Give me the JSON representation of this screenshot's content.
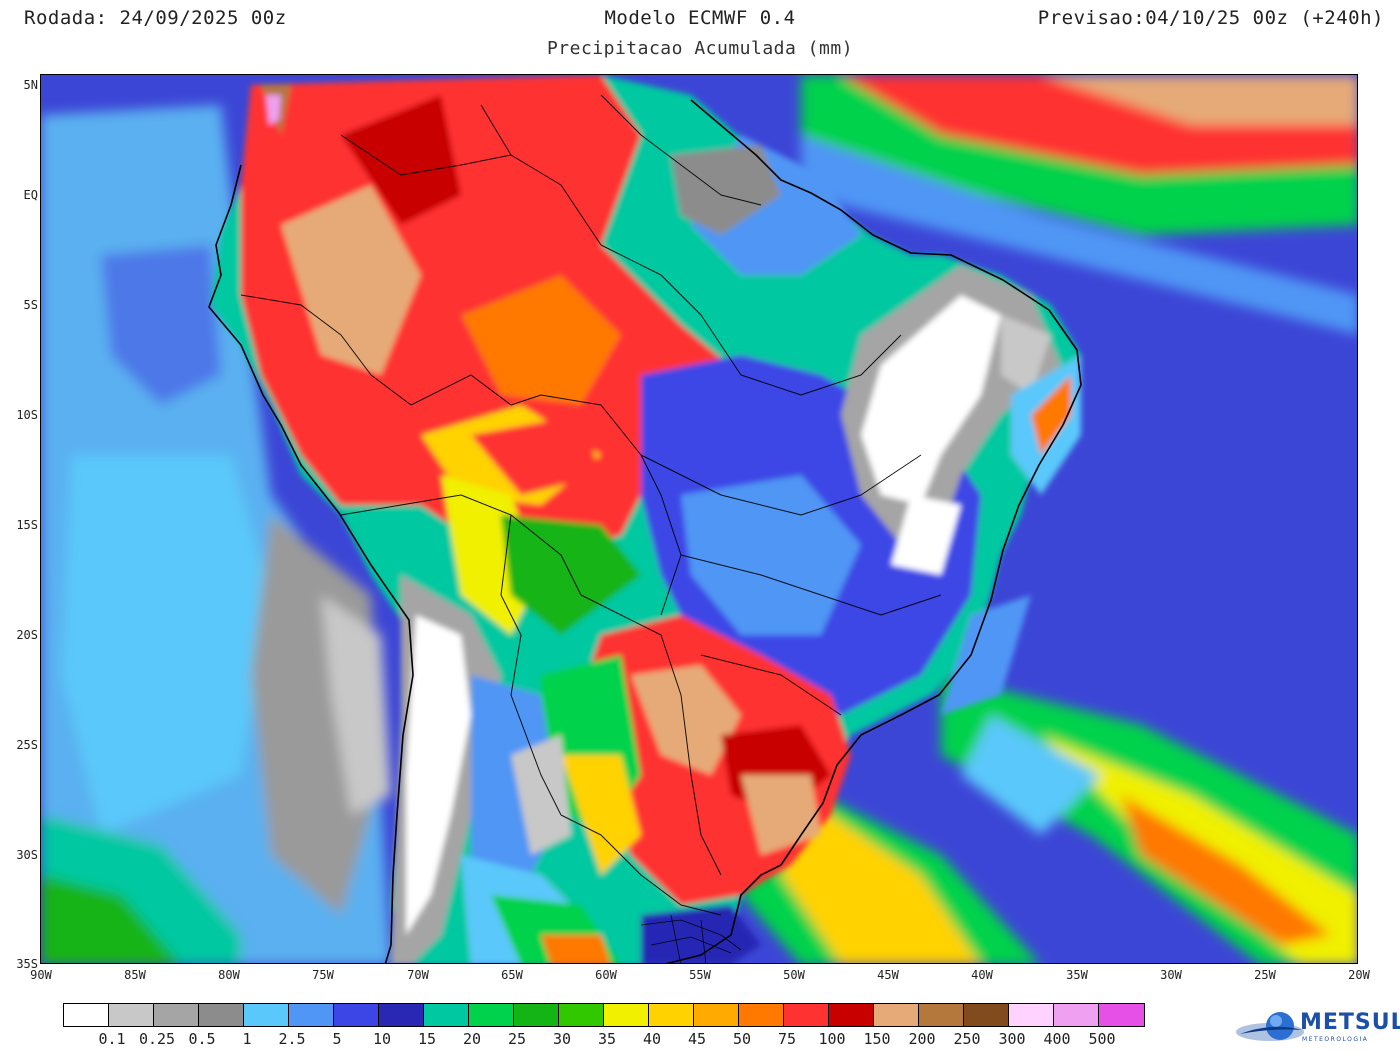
{
  "header": {
    "run": "Rodada: 24/09/2025 00z",
    "model": "Modelo ECMWF 0.4",
    "forecast": "Previsao:04/10/25 00z (+240h)",
    "subtitle": "Precipitacao Acumulada (mm)"
  },
  "axes": {
    "lat_labels": [
      "5N",
      "EQ",
      "5S",
      "10S",
      "15S",
      "20S",
      "25S",
      "30S",
      "35S"
    ],
    "lon_labels": [
      "90W",
      "85W",
      "80W",
      "75W",
      "70W",
      "65W",
      "60W",
      "55W",
      "50W",
      "45W",
      "40W",
      "35W",
      "30W",
      "25W",
      "20W"
    ]
  },
  "colorbar": {
    "labels": [
      "0.1",
      "0.25",
      "0.5",
      "1",
      "2.5",
      "5",
      "10",
      "15",
      "20",
      "25",
      "30",
      "35",
      "40",
      "45",
      "50",
      "75",
      "100",
      "150",
      "200",
      "250",
      "300",
      "400",
      "500"
    ],
    "colors": [
      "#ffffff",
      "#c8c8c8",
      "#a5a5a5",
      "#8c8c8c",
      "#5ac8fa",
      "#5096f5",
      "#3c46e6",
      "#2828b4",
      "#00c8a0",
      "#00d24b",
      "#14b414",
      "#32c800",
      "#f0f000",
      "#ffd200",
      "#ffaa00",
      "#ff7800",
      "#ff3232",
      "#c80000",
      "#e6aa78",
      "#b4783c",
      "#824b1e",
      "#ffd2ff",
      "#f0a0f0",
      "#e650e6",
      "#8c008c"
    ]
  },
  "logo": {
    "name": "METSUL",
    "tagline": "METEOROLOGIA"
  }
}
